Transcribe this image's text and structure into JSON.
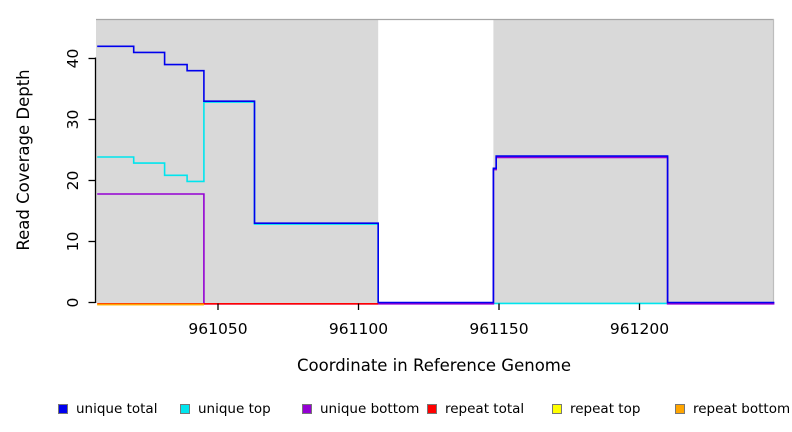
{
  "chart": {
    "title": "",
    "y_axis": {
      "label": "Read Coverage Depth"
    },
    "x_axis": {
      "label": "Coordinate in Reference Genome"
    }
  },
  "chart_data": {
    "type": "line",
    "subtype": "step",
    "title": "",
    "xlabel": "Coordinate in Reference Genome",
    "ylabel": "Read Coverage Depth",
    "xlim": [
      961007,
      961248
    ],
    "ylim": [
      0,
      46
    ],
    "x_ticks": [
      961050,
      961100,
      961150,
      961200
    ],
    "y_ticks": [
      0,
      10,
      20,
      30,
      40
    ],
    "grid": false,
    "plot_background": "#D9D9D9",
    "figure_background": "#FFFFFF",
    "uncovered_region": {
      "x_start": 961107,
      "x_end": 961148,
      "fill": "#FFFFFF"
    },
    "legend_position": "bottom",
    "series": [
      {
        "name": "unique total",
        "color": "#0000EE",
        "x_end": 961248,
        "steps": [
          [
            961007,
            42
          ],
          [
            961020,
            41
          ],
          [
            961031,
            39
          ],
          [
            961039,
            38
          ],
          [
            961045,
            33
          ],
          [
            961063,
            13
          ],
          [
            961107,
            0
          ],
          [
            961148,
            22
          ],
          [
            961149,
            24
          ],
          [
            961210,
            0
          ]
        ]
      },
      {
        "name": "unique top",
        "color": "#00E5EE",
        "x_end": 961210,
        "steps": [
          [
            961007,
            24
          ],
          [
            961020,
            23
          ],
          [
            961031,
            21
          ],
          [
            961039,
            20
          ],
          [
            961045,
            33
          ],
          [
            961063,
            13
          ],
          [
            961107,
            0
          ]
        ]
      },
      {
        "name": "unique bottom",
        "color": "#9400D3",
        "x_end": 961248,
        "steps": [
          [
            961007,
            18
          ],
          [
            961045,
            0
          ],
          [
            961148,
            22
          ],
          [
            961149,
            24
          ],
          [
            961210,
            0
          ]
        ]
      },
      {
        "name": "repeat total",
        "color": "#FF0000",
        "x_end": 961107,
        "steps": [
          [
            961007,
            0
          ]
        ]
      },
      {
        "name": "repeat top",
        "color": "#FFFF00",
        "x_end": 961045,
        "steps": [
          [
            961007,
            0
          ]
        ]
      },
      {
        "name": "repeat bottom",
        "color": "#FFA500",
        "x_end": 961045,
        "steps": [
          [
            961007,
            0
          ]
        ]
      }
    ]
  }
}
